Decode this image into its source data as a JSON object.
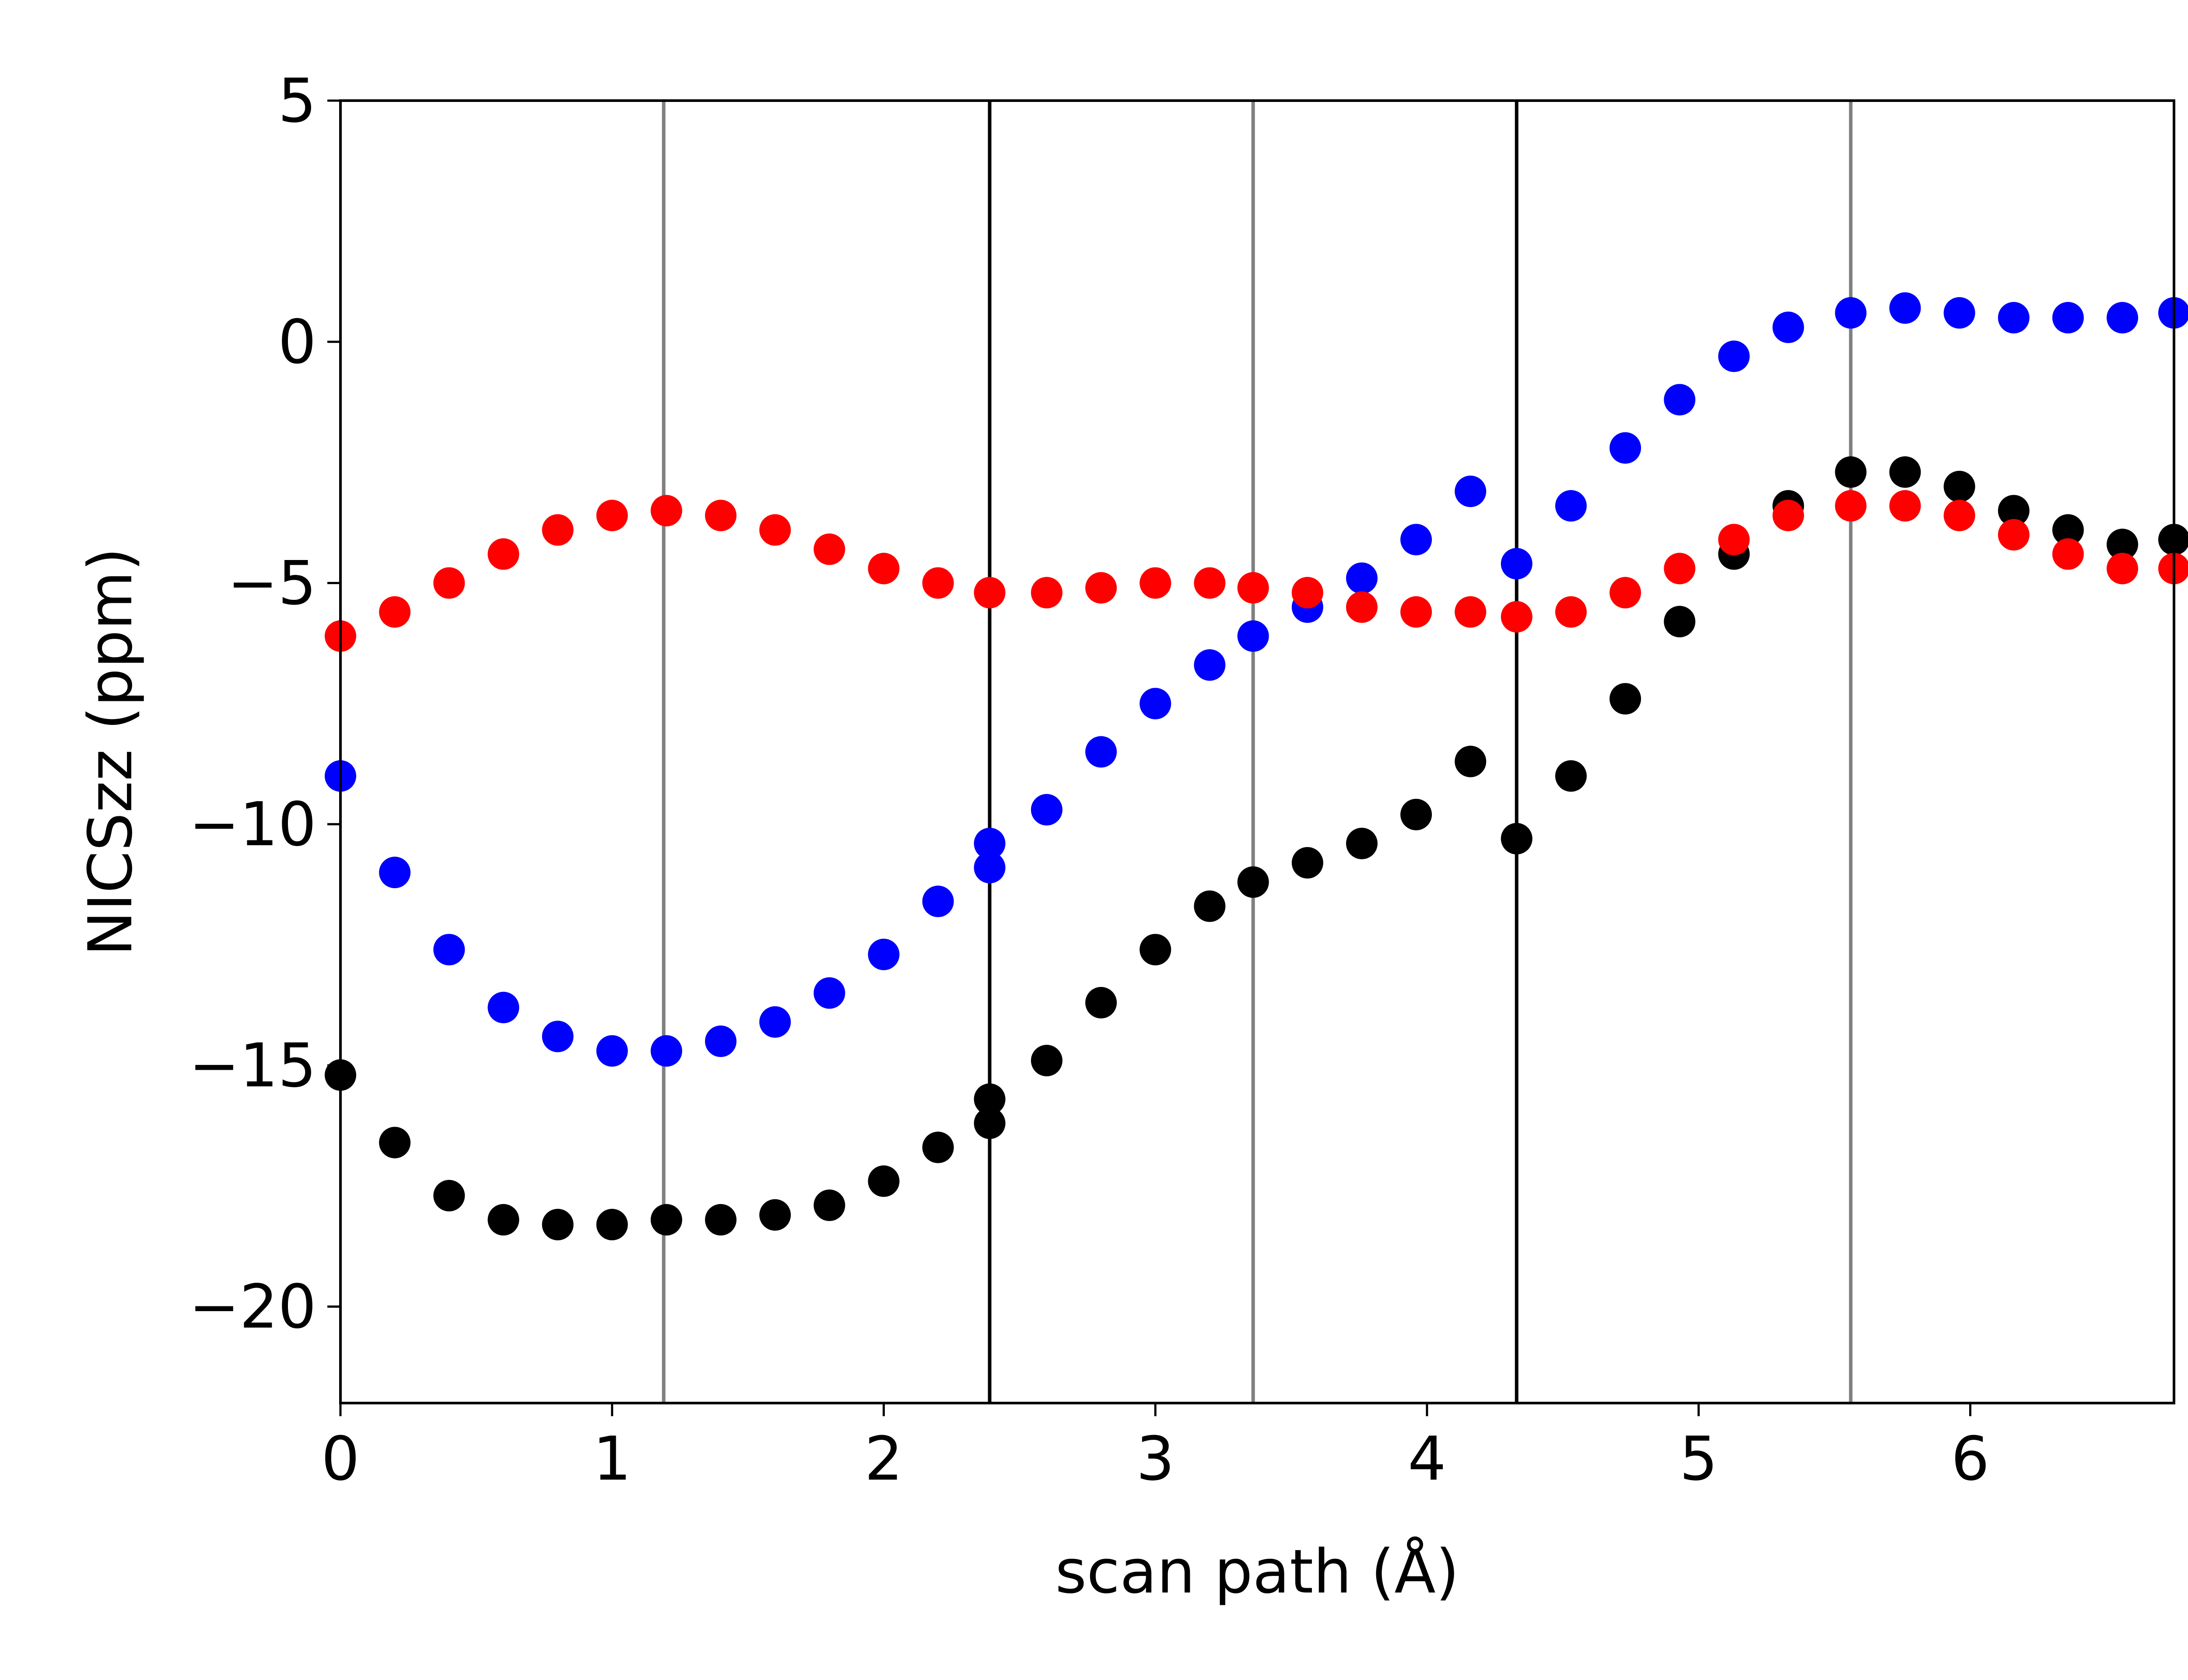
{
  "chart_data": {
    "type": "scatter",
    "xlabel": "scan path (Å)",
    "ylabel": "NICSzz (ppm)",
    "xlim": [
      0,
      6.75
    ],
    "ylim": [
      -22,
      5
    ],
    "grid": false,
    "legend": "none",
    "x_ticks": [
      "0",
      "1",
      "2",
      "3",
      "4",
      "5",
      "6"
    ],
    "y_ticks": [
      "5",
      "0",
      "−5",
      "−10",
      "−15",
      "−20"
    ],
    "y_tick_values": [
      5,
      0,
      -5,
      -10,
      -15,
      -20
    ],
    "x_tick_values": [
      0,
      1,
      2,
      3,
      4,
      5,
      6
    ],
    "vertical_lines": [
      {
        "x": 1.19,
        "color": "#808080"
      },
      {
        "x": 2.39,
        "color": "#000000"
      },
      {
        "x": 3.36,
        "color": "#808080"
      },
      {
        "x": 4.33,
        "color": "#000000"
      },
      {
        "x": 5.56,
        "color": "#808080"
      }
    ],
    "series": [
      {
        "color": "#0000ff",
        "x": [
          0,
          0.2,
          0.4,
          0.6,
          0.8,
          1.0,
          1.2,
          1.4,
          1.6,
          1.8,
          2.0,
          2.2,
          2.39,
          2.39,
          2.6,
          2.8,
          3.0,
          3.2,
          3.36,
          3.56,
          3.76,
          3.96,
          4.16,
          4.33,
          4.53,
          4.73,
          4.93,
          5.13,
          5.33,
          5.56,
          5.76,
          5.96,
          6.16,
          6.36,
          6.56,
          6.75
        ],
        "y": [
          -9.0,
          -11.0,
          -12.6,
          -13.8,
          -14.4,
          -14.7,
          -14.7,
          -14.5,
          -14.1,
          -13.5,
          -12.7,
          -11.6,
          -10.9,
          -10.4,
          -9.7,
          -8.5,
          -7.5,
          -6.7,
          -6.1,
          -5.5,
          -4.9,
          -4.1,
          -3.1,
          -4.6,
          -3.4,
          -2.2,
          -1.2,
          -0.3,
          0.3,
          0.6,
          0.7,
          0.6,
          0.5,
          0.5,
          0.5,
          0.6
        ]
      },
      {
        "color": "#000000",
        "x": [
          0,
          0.2,
          0.4,
          0.6,
          0.8,
          1.0,
          1.2,
          1.4,
          1.6,
          1.8,
          2.0,
          2.2,
          2.39,
          2.39,
          2.6,
          2.8,
          3.0,
          3.2,
          3.36,
          3.56,
          3.76,
          3.96,
          4.16,
          4.33,
          4.53,
          4.73,
          4.93,
          5.13,
          5.33,
          5.56,
          5.76,
          5.96,
          6.16,
          6.36,
          6.56,
          6.75
        ],
        "y": [
          -15.2,
          -16.6,
          -17.7,
          -18.2,
          -18.3,
          -18.3,
          -18.2,
          -18.2,
          -18.1,
          -17.9,
          -17.4,
          -16.7,
          -16.2,
          -15.7,
          -14.9,
          -13.7,
          -12.6,
          -11.7,
          -11.2,
          -10.8,
          -10.4,
          -9.8,
          -8.7,
          -10.3,
          -9.0,
          -7.4,
          -5.8,
          -4.4,
          -3.4,
          -2.7,
          -2.7,
          -3.0,
          -3.5,
          -3.9,
          -4.2,
          -4.1
        ]
      },
      {
        "color": "#ff0000",
        "x": [
          0,
          0.2,
          0.4,
          0.6,
          0.8,
          1.0,
          1.2,
          1.4,
          1.6,
          1.8,
          2.0,
          2.2,
          2.39,
          2.6,
          2.8,
          3.0,
          3.2,
          3.36,
          3.56,
          3.76,
          3.96,
          4.16,
          4.33,
          4.53,
          4.73,
          4.93,
          5.13,
          5.33,
          5.56,
          5.76,
          5.96,
          6.16,
          6.36,
          6.56,
          6.75
        ],
        "y": [
          -6.1,
          -5.6,
          -5.0,
          -4.4,
          -3.9,
          -3.6,
          -3.5,
          -3.6,
          -3.9,
          -4.3,
          -4.7,
          -5.0,
          -5.2,
          -5.2,
          -5.1,
          -5.0,
          -5.0,
          -5.1,
          -5.2,
          -5.5,
          -5.6,
          -5.6,
          -5.7,
          -5.6,
          -5.2,
          -4.7,
          -4.1,
          -3.6,
          -3.4,
          -3.4,
          -3.6,
          -4.0,
          -4.4,
          -4.7,
          -4.7
        ]
      }
    ]
  }
}
